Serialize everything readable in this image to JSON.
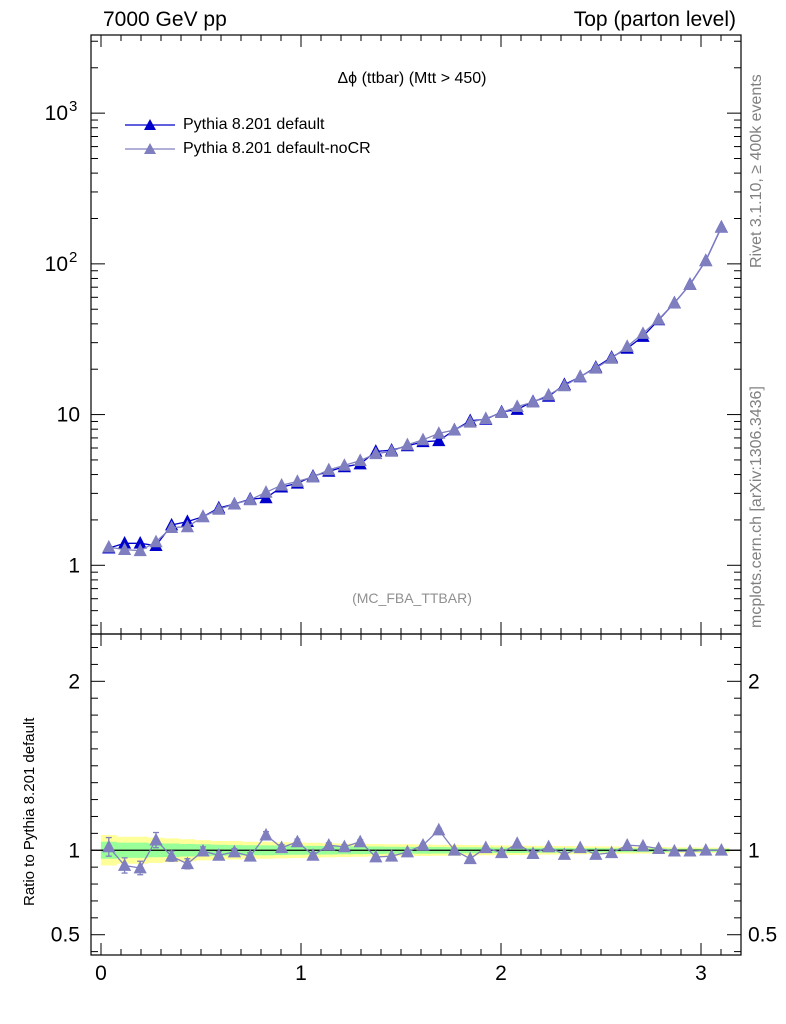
{
  "header": {
    "left": "7000 GeV pp",
    "right": "Top (parton level)"
  },
  "side_labels": {
    "rivet": "Rivet 3.1.10, ≥ 400k events",
    "mcplots": "mcplots.cern.ch [arXiv:1306.3436]"
  },
  "chart_data": {
    "type": "line",
    "title": "Δϕ (ttbar) (Mtt > 450)",
    "annotation": "(MC_FBA_TTBAR)",
    "xlabel": "",
    "ylabel": "",
    "xlim": [
      -0.05,
      3.2
    ],
    "ylim": [
      0.35,
      3300
    ],
    "yscale": "log",
    "ytick_labels": [
      "1",
      "10",
      "10^2",
      "10^3"
    ],
    "xtick_labels": [
      "0",
      "1",
      "2",
      "3"
    ],
    "legend_placement": "top-left",
    "x": [
      0.039,
      0.118,
      0.196,
      0.275,
      0.353,
      0.432,
      0.51,
      0.589,
      0.667,
      0.746,
      0.825,
      0.903,
      0.982,
      1.06,
      1.139,
      1.217,
      1.296,
      1.374,
      1.453,
      1.532,
      1.61,
      1.689,
      1.767,
      1.846,
      1.924,
      2.003,
      2.081,
      2.16,
      2.238,
      2.317,
      2.396,
      2.474,
      2.553,
      2.631,
      2.71,
      2.788,
      2.867,
      2.945,
      3.024,
      3.102
    ],
    "series": [
      {
        "name": "Pythia 8.201 default",
        "color": "#0000cc",
        "values": [
          1.3,
          1.4,
          1.4,
          1.35,
          1.85,
          1.95,
          2.1,
          2.4,
          2.55,
          2.75,
          2.8,
          3.3,
          3.5,
          3.9,
          4.2,
          4.5,
          4.7,
          5.7,
          5.8,
          6.2,
          6.6,
          6.7,
          7.9,
          9.1,
          9.3,
          10.4,
          10.8,
          12.2,
          13.2,
          15.8,
          17.8,
          20.6,
          24.0,
          27.5,
          33.0,
          42.5,
          55.0,
          73.0,
          105.0,
          175.0
        ]
      },
      {
        "name": "Pythia 8.201 default-noCR",
        "color": "#7f7fbf",
        "values": [
          1.32,
          1.27,
          1.25,
          1.43,
          1.78,
          1.8,
          2.1,
          2.35,
          2.55,
          2.72,
          3.05,
          3.4,
          3.6,
          3.85,
          4.3,
          4.6,
          4.95,
          5.5,
          5.7,
          6.3,
          6.8,
          7.5,
          7.9,
          8.9,
          9.4,
          10.3,
          11.3,
          12.1,
          13.5,
          15.5,
          17.9,
          20.3,
          23.6,
          28.3,
          34.5,
          42.8,
          55.0,
          72.8,
          105.0,
          175.0
        ]
      }
    ],
    "ratio_panel": {
      "ylabel": "Ratio to Pythia 8.201 default",
      "ylim": [
        0.38,
        2.28
      ],
      "ytick_labels": [
        "0.5",
        "1",
        "2"
      ],
      "values": [
        1.02,
        0.91,
        0.895,
        1.06,
        0.965,
        0.92,
        0.995,
        0.97,
        0.99,
        0.965,
        1.09,
        1.015,
        1.05,
        0.97,
        1.03,
        1.02,
        1.05,
        0.96,
        0.965,
        0.99,
        1.03,
        1.12,
        1.0,
        0.95,
        1.015,
        0.985,
        1.04,
        0.98,
        1.02,
        0.975,
        1.015,
        0.975,
        0.985,
        1.03,
        1.025,
        1.01,
        0.995,
        0.995,
        1.0,
        1.0
      ],
      "errors": [
        0.055,
        0.045,
        0.04,
        0.045,
        0.03,
        0.03,
        0.025,
        0.022,
        0.02,
        0.02,
        0.02,
        0.018,
        0.016,
        0.015,
        0.014,
        0.013,
        0.012,
        0.012,
        0.011,
        0.011,
        0.01,
        0.01,
        0.009,
        0.009,
        0.008,
        0.008,
        0.007,
        0.007,
        0.006,
        0.006,
        0.006,
        0.005,
        0.005,
        0.005,
        0.004,
        0.004,
        0.004,
        0.003,
        0.003,
        0.003
      ],
      "band_yellow": [
        0.09,
        0.08,
        0.08,
        0.075,
        0.07,
        0.065,
        0.06,
        0.055,
        0.055,
        0.05,
        0.05,
        0.048,
        0.046,
        0.044,
        0.042,
        0.04,
        0.038,
        0.037,
        0.036,
        0.035,
        0.034,
        0.033,
        0.032,
        0.031,
        0.03,
        0.029,
        0.028,
        0.027,
        0.026,
        0.025,
        0.024,
        0.023,
        0.022,
        0.021,
        0.02,
        0.019,
        0.018,
        0.017,
        0.016,
        0.015
      ],
      "band_green": [
        0.05,
        0.045,
        0.045,
        0.042,
        0.04,
        0.037,
        0.035,
        0.032,
        0.031,
        0.03,
        0.029,
        0.028,
        0.027,
        0.026,
        0.025,
        0.024,
        0.023,
        0.022,
        0.021,
        0.02,
        0.02,
        0.019,
        0.018,
        0.018,
        0.017,
        0.016,
        0.016,
        0.015,
        0.015,
        0.014,
        0.013,
        0.013,
        0.012,
        0.012,
        0.011,
        0.011,
        0.01,
        0.01,
        0.009,
        0.009
      ],
      "band_colors": {
        "yellow": "#ffff99",
        "green": "#99ff99"
      }
    }
  }
}
